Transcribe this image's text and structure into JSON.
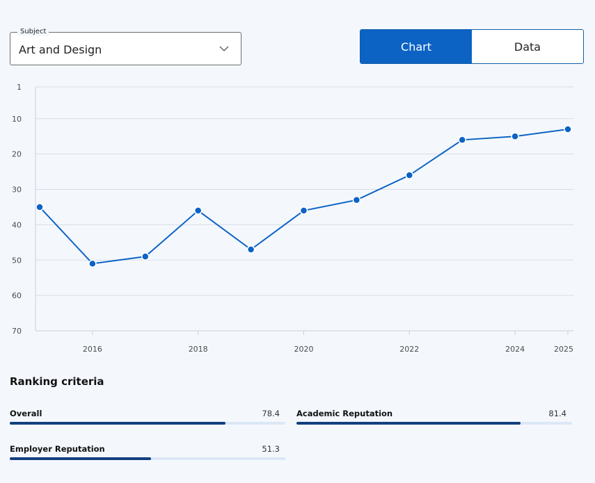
{
  "subject": {
    "legend": "Subject",
    "value": "Art and Design"
  },
  "view_toggle": {
    "chart_label": "Chart",
    "data_label": "Data",
    "active": "Chart"
  },
  "chart_data": {
    "type": "line",
    "title": "",
    "xlabel": "",
    "ylabel": "",
    "y_inverted": true,
    "ylim": [
      1,
      70
    ],
    "xlim": [
      2015,
      2025
    ],
    "y_ticks": [
      1,
      10,
      20,
      30,
      40,
      50,
      60,
      70
    ],
    "x_ticks": [
      2016,
      2018,
      2020,
      2022,
      2024,
      2025
    ],
    "grid": true,
    "series": [
      {
        "color": "#0c63c4",
        "x": [
          2015,
          2016,
          2017,
          2018,
          2019,
          2020,
          2021,
          2022,
          2023,
          2024,
          2025
        ],
        "y": [
          35,
          51,
          49,
          36,
          47,
          36,
          33,
          26,
          16,
          15,
          13
        ]
      }
    ]
  },
  "criteria": {
    "title": "Ranking criteria",
    "items": [
      {
        "label": "Overall",
        "value": "78.4",
        "fraction": 0.784
      },
      {
        "label": "Academic Reputation",
        "value": "81.4",
        "fraction": 0.814
      },
      {
        "label": "Employer Reputation",
        "value": "51.3",
        "fraction": 0.513
      }
    ]
  }
}
